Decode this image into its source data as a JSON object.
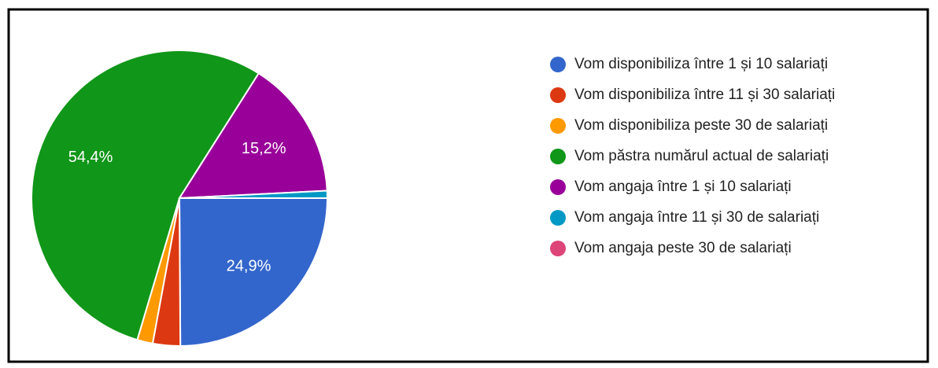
{
  "chart_data": {
    "type": "pie",
    "categories": [
      "Vom disponibiliza între 1 și 10 salariați",
      "Vom disponibiliza între 11 și 30 salariați",
      "Vom disponibiliza peste 30 de salariați",
      "Vom păstra numărul actual de salariați",
      "Vom angaja între 1 și 10 salariați",
      "Vom angaja între 11 și 30 de salariați",
      "Vom angaja peste 30 de salariați"
    ],
    "values": [
      24.9,
      3.0,
      1.7,
      54.4,
      15.2,
      0.8,
      0
    ],
    "value_labels": [
      "24,9%",
      null,
      null,
      "54,4%",
      "15,2%",
      null,
      null
    ],
    "colors": [
      "#3366cc",
      "#dc3912",
      "#ff9900",
      "#109618",
      "#990099",
      "#0099c6",
      "#dd4477"
    ],
    "legend": "right"
  }
}
